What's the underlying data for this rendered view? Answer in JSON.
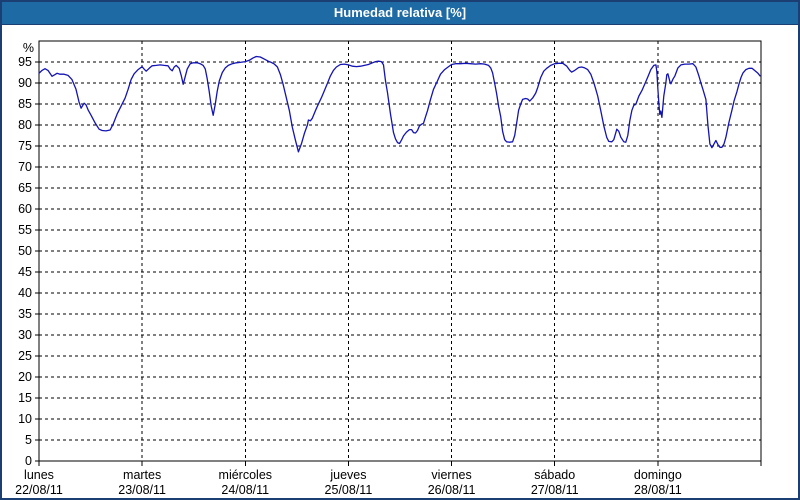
{
  "window": {
    "title": "Humedad relativa [%]"
  },
  "colors": {
    "titlebar_bg": "#1d6aa4",
    "outer_border": "#1b3e73",
    "line": "#1414b4",
    "grid": "#000000",
    "background": "#ffffff"
  },
  "chart_data": {
    "type": "line",
    "title": "Humedad relativa [%]",
    "ylabel": "%",
    "ylim": [
      0,
      100
    ],
    "yticks": {
      "min": 0,
      "max": 95,
      "step": 5
    },
    "grid": "dashed",
    "legend": "none",
    "x_days": [
      {
        "name": "lunes",
        "date": "22/08/11"
      },
      {
        "name": "martes",
        "date": "23/08/11"
      },
      {
        "name": "miércoles",
        "date": "24/08/11"
      },
      {
        "name": "jueves",
        "date": "25/08/11"
      },
      {
        "name": "viernes",
        "date": "26/08/11"
      },
      {
        "name": "sábado",
        "date": "27/08/11"
      },
      {
        "name": "domingo",
        "date": "28/08/11"
      }
    ],
    "series": [
      {
        "name": "Humedad relativa",
        "color": "#1414b4",
        "points": [
          [
            0,
            92.3
          ],
          [
            0.029,
            93
          ],
          [
            0.058,
            93.4
          ],
          [
            0.087,
            93
          ],
          [
            0.126,
            91.6
          ],
          [
            0.155,
            92
          ],
          [
            0.175,
            92.3
          ],
          [
            0.204,
            92.1
          ],
          [
            0.243,
            92.1
          ],
          [
            0.282,
            91.8
          ],
          [
            0.32,
            90.8
          ],
          [
            0.359,
            88.5
          ],
          [
            0.388,
            85.5
          ],
          [
            0.408,
            84
          ],
          [
            0.437,
            85.2
          ],
          [
            0.456,
            84.8
          ],
          [
            0.476,
            83.6
          ],
          [
            0.505,
            82.3
          ],
          [
            0.544,
            80.5
          ],
          [
            0.583,
            79
          ],
          [
            0.612,
            78.7
          ],
          [
            0.65,
            78.6
          ],
          [
            0.689,
            78.8
          ],
          [
            0.718,
            80.2
          ],
          [
            0.757,
            82.6
          ],
          [
            0.796,
            84.5
          ],
          [
            0.835,
            86.4
          ],
          [
            0.864,
            88.5
          ],
          [
            0.893,
            90.8
          ],
          [
            0.922,
            92.2
          ],
          [
            0.961,
            93.2
          ],
          [
            1,
            93.9
          ],
          [
            1.019,
            93.3
          ],
          [
            1.039,
            92.8
          ],
          [
            1.068,
            93.5
          ],
          [
            1.097,
            94.1
          ],
          [
            1.136,
            94.2
          ],
          [
            1.175,
            94.3
          ],
          [
            1.214,
            94.2
          ],
          [
            1.252,
            94.1
          ],
          [
            1.272,
            93.3
          ],
          [
            1.291,
            92.9
          ],
          [
            1.311,
            93.8
          ],
          [
            1.33,
            94.2
          ],
          [
            1.359,
            93.5
          ],
          [
            1.379,
            91.8
          ],
          [
            1.398,
            89.7
          ],
          [
            1.417,
            91.5
          ],
          [
            1.437,
            93.3
          ],
          [
            1.466,
            94.6
          ],
          [
            1.495,
            94.8
          ],
          [
            1.534,
            94.8
          ],
          [
            1.563,
            94.6
          ],
          [
            1.592,
            94.2
          ],
          [
            1.612,
            93.3
          ],
          [
            1.631,
            91
          ],
          [
            1.65,
            88
          ],
          [
            1.67,
            84.5
          ],
          [
            1.689,
            82.3
          ],
          [
            1.709,
            85
          ],
          [
            1.728,
            88
          ],
          [
            1.748,
            90.5
          ],
          [
            1.777,
            92.5
          ],
          [
            1.806,
            93.6
          ],
          [
            1.835,
            94.2
          ],
          [
            1.874,
            94.6
          ],
          [
            1.913,
            94.8
          ],
          [
            1.951,
            94.9
          ],
          [
            2,
            95.1
          ],
          [
            2.039,
            95.4
          ],
          [
            2.078,
            96
          ],
          [
            2.107,
            96.3
          ],
          [
            2.146,
            96.2
          ],
          [
            2.184,
            95.7
          ],
          [
            2.223,
            95.2
          ],
          [
            2.252,
            94.9
          ],
          [
            2.282,
            94.5
          ],
          [
            2.311,
            93.8
          ],
          [
            2.34,
            92
          ],
          [
            2.369,
            89.5
          ],
          [
            2.398,
            86.5
          ],
          [
            2.427,
            83.5
          ],
          [
            2.456,
            79.5
          ],
          [
            2.485,
            76.5
          ],
          [
            2.515,
            73.6
          ],
          [
            2.544,
            75.5
          ],
          [
            2.573,
            78
          ],
          [
            2.602,
            80
          ],
          [
            2.612,
            81.2
          ],
          [
            2.631,
            81
          ],
          [
            2.65,
            81.6
          ],
          [
            2.68,
            83.4
          ],
          [
            2.709,
            85
          ],
          [
            2.738,
            86.5
          ],
          [
            2.767,
            88.2
          ],
          [
            2.796,
            89.9
          ],
          [
            2.825,
            91.7
          ],
          [
            2.854,
            93
          ],
          [
            2.883,
            93.8
          ],
          [
            2.922,
            94.4
          ],
          [
            2.961,
            94.5
          ],
          [
            3,
            94.3
          ],
          [
            3.039,
            94
          ],
          [
            3.078,
            93.9
          ],
          [
            3.117,
            94
          ],
          [
            3.155,
            94.2
          ],
          [
            3.194,
            94.4
          ],
          [
            3.233,
            94.8
          ],
          [
            3.262,
            95.1
          ],
          [
            3.291,
            95.2
          ],
          [
            3.32,
            95.1
          ],
          [
            3.34,
            94.3
          ],
          [
            3.359,
            90.5
          ],
          [
            3.379,
            87.7
          ],
          [
            3.408,
            82.6
          ],
          [
            3.437,
            78.2
          ],
          [
            3.456,
            76.7
          ],
          [
            3.476,
            75.8
          ],
          [
            3.495,
            75.6
          ],
          [
            3.515,
            76.4
          ],
          [
            3.534,
            77.4
          ],
          [
            3.563,
            78.3
          ],
          [
            3.592,
            78.9
          ],
          [
            3.612,
            78.9
          ],
          [
            3.631,
            78.2
          ],
          [
            3.65,
            78.1
          ],
          [
            3.67,
            78.7
          ],
          [
            3.689,
            79.8
          ],
          [
            3.709,
            80.2
          ],
          [
            3.728,
            80.4
          ],
          [
            3.748,
            82
          ],
          [
            3.767,
            83.4
          ],
          [
            3.796,
            86.1
          ],
          [
            3.825,
            88.5
          ],
          [
            3.854,
            90
          ],
          [
            3.893,
            92.1
          ],
          [
            3.932,
            93.2
          ],
          [
            3.971,
            93.9
          ],
          [
            4,
            94.4
          ],
          [
            4.039,
            94.6
          ],
          [
            4.087,
            94.6
          ],
          [
            4.136,
            94.7
          ],
          [
            4.184,
            94.6
          ],
          [
            4.233,
            94.5
          ],
          [
            4.282,
            94.6
          ],
          [
            4.32,
            94.5
          ],
          [
            4.359,
            94.2
          ],
          [
            4.379,
            93.6
          ],
          [
            4.398,
            92.4
          ],
          [
            4.417,
            90
          ],
          [
            4.437,
            87.5
          ],
          [
            4.456,
            84.5
          ],
          [
            4.476,
            82
          ],
          [
            4.495,
            78.5
          ],
          [
            4.515,
            76.5
          ],
          [
            4.534,
            76
          ],
          [
            4.563,
            75.9
          ],
          [
            4.592,
            76
          ],
          [
            4.612,
            77.5
          ],
          [
            4.631,
            80.5
          ],
          [
            4.65,
            83.5
          ],
          [
            4.67,
            85
          ],
          [
            4.689,
            86.1
          ],
          [
            4.718,
            86.3
          ],
          [
            4.738,
            86.2
          ],
          [
            4.757,
            85.7
          ],
          [
            4.786,
            86.4
          ],
          [
            4.816,
            87.6
          ],
          [
            4.835,
            88.9
          ],
          [
            4.864,
            91.3
          ],
          [
            4.893,
            92.8
          ],
          [
            4.922,
            93.5
          ],
          [
            4.961,
            94.2
          ],
          [
            5,
            94.6
          ],
          [
            5.039,
            94.7
          ],
          [
            5.078,
            94.7
          ],
          [
            5.117,
            94
          ],
          [
            5.146,
            93
          ],
          [
            5.165,
            92.6
          ],
          [
            5.194,
            93
          ],
          [
            5.233,
            93.7
          ],
          [
            5.262,
            93.8
          ],
          [
            5.291,
            93.6
          ],
          [
            5.32,
            93.2
          ],
          [
            5.35,
            92.1
          ],
          [
            5.379,
            90.1
          ],
          [
            5.398,
            88.5
          ],
          [
            5.417,
            86.9
          ],
          [
            5.447,
            83.4
          ],
          [
            5.476,
            79.8
          ],
          [
            5.505,
            77
          ],
          [
            5.524,
            76.1
          ],
          [
            5.553,
            76
          ],
          [
            5.573,
            76.5
          ],
          [
            5.602,
            79
          ],
          [
            5.621,
            78.5
          ],
          [
            5.641,
            77.1
          ],
          [
            5.67,
            76
          ],
          [
            5.689,
            75.9
          ],
          [
            5.709,
            77.5
          ],
          [
            5.728,
            81
          ],
          [
            5.748,
            83.5
          ],
          [
            5.767,
            84.7
          ],
          [
            5.786,
            84.9
          ],
          [
            5.816,
            86.9
          ],
          [
            5.845,
            88.2
          ],
          [
            5.874,
            89.8
          ],
          [
            5.903,
            91.5
          ],
          [
            5.932,
            93.2
          ],
          [
            5.961,
            94.2
          ],
          [
            5.981,
            94.3
          ],
          [
            5.99,
            92.8
          ],
          [
            6,
            88.5
          ],
          [
            6.01,
            85
          ],
          [
            6.019,
            82.5
          ],
          [
            6.029,
            83.3
          ],
          [
            6.039,
            81.8
          ],
          [
            6.058,
            86.9
          ],
          [
            6.078,
            90.1
          ],
          [
            6.087,
            92
          ],
          [
            6.097,
            92.2
          ],
          [
            6.117,
            90.3
          ],
          [
            6.126,
            89.8
          ],
          [
            6.146,
            90.9
          ],
          [
            6.165,
            91.7
          ],
          [
            6.194,
            93.6
          ],
          [
            6.223,
            94.3
          ],
          [
            6.262,
            94.5
          ],
          [
            6.301,
            94.5
          ],
          [
            6.34,
            94.6
          ],
          [
            6.369,
            93.8
          ],
          [
            6.398,
            91.7
          ],
          [
            6.417,
            90
          ],
          [
            6.437,
            88.5
          ],
          [
            6.466,
            86.1
          ],
          [
            6.485,
            80
          ],
          [
            6.505,
            75.5
          ],
          [
            6.524,
            74.6
          ],
          [
            6.544,
            75.5
          ],
          [
            6.563,
            76.3
          ],
          [
            6.583,
            75.3
          ],
          [
            6.602,
            74.7
          ],
          [
            6.621,
            74.7
          ],
          [
            6.641,
            75.5
          ],
          [
            6.66,
            77.1
          ],
          [
            6.689,
            80.6
          ],
          [
            6.718,
            83.5
          ],
          [
            6.738,
            85.7
          ],
          [
            6.767,
            88
          ],
          [
            6.786,
            89.7
          ],
          [
            6.806,
            91.3
          ],
          [
            6.825,
            92.4
          ],
          [
            6.854,
            93.2
          ],
          [
            6.883,
            93.5
          ],
          [
            6.913,
            93.5
          ],
          [
            6.942,
            92.9
          ],
          [
            6.971,
            92.3
          ],
          [
            6.99,
            91.7
          ]
        ]
      }
    ]
  }
}
